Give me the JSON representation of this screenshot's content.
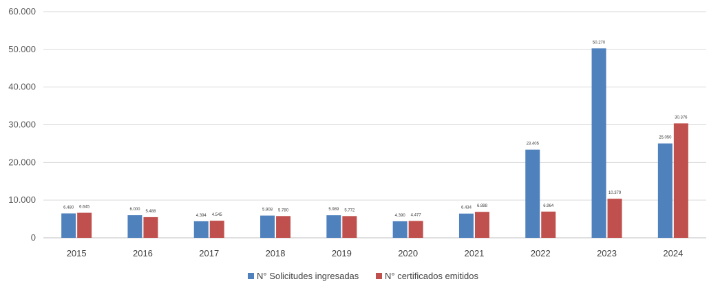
{
  "chart_data": {
    "type": "bar",
    "categories": [
      "2015",
      "2016",
      "2017",
      "2018",
      "2019",
      "2020",
      "2021",
      "2022",
      "2023",
      "2024"
    ],
    "series": [
      {
        "name": "N° Solicitudes ingresadas",
        "color": "#4F81BD",
        "values": [
          6480,
          6000,
          4394,
          5908,
          5989,
          4390,
          6434,
          23405,
          50270,
          25050
        ],
        "labels": [
          "6.480",
          "6.000",
          "4.394",
          "5.908",
          "5.989",
          "4.390",
          "6.434",
          "23.405",
          "50.270",
          "25.050"
        ]
      },
      {
        "name": "N° certificados emitidos",
        "color": "#C0504D",
        "values": [
          6645,
          5488,
          4545,
          5780,
          5772,
          4477,
          6888,
          6964,
          10379,
          30376
        ],
        "labels": [
          "6.645",
          "5.488",
          "4.545",
          "5.780",
          "5.772",
          "4.477",
          "6.888",
          "6.964",
          "10.379",
          "30.376"
        ]
      }
    ],
    "yticks": [
      0,
      10000,
      20000,
      30000,
      40000,
      50000,
      60000
    ],
    "ytick_labels": [
      "0",
      "10.000",
      "20.000",
      "30.000",
      "40.000",
      "50.000",
      "60.000"
    ],
    "ylim": [
      0,
      60000
    ],
    "grid": true,
    "legend_position": "bottom-center",
    "title": "",
    "xlabel": "",
    "ylabel": ""
  }
}
